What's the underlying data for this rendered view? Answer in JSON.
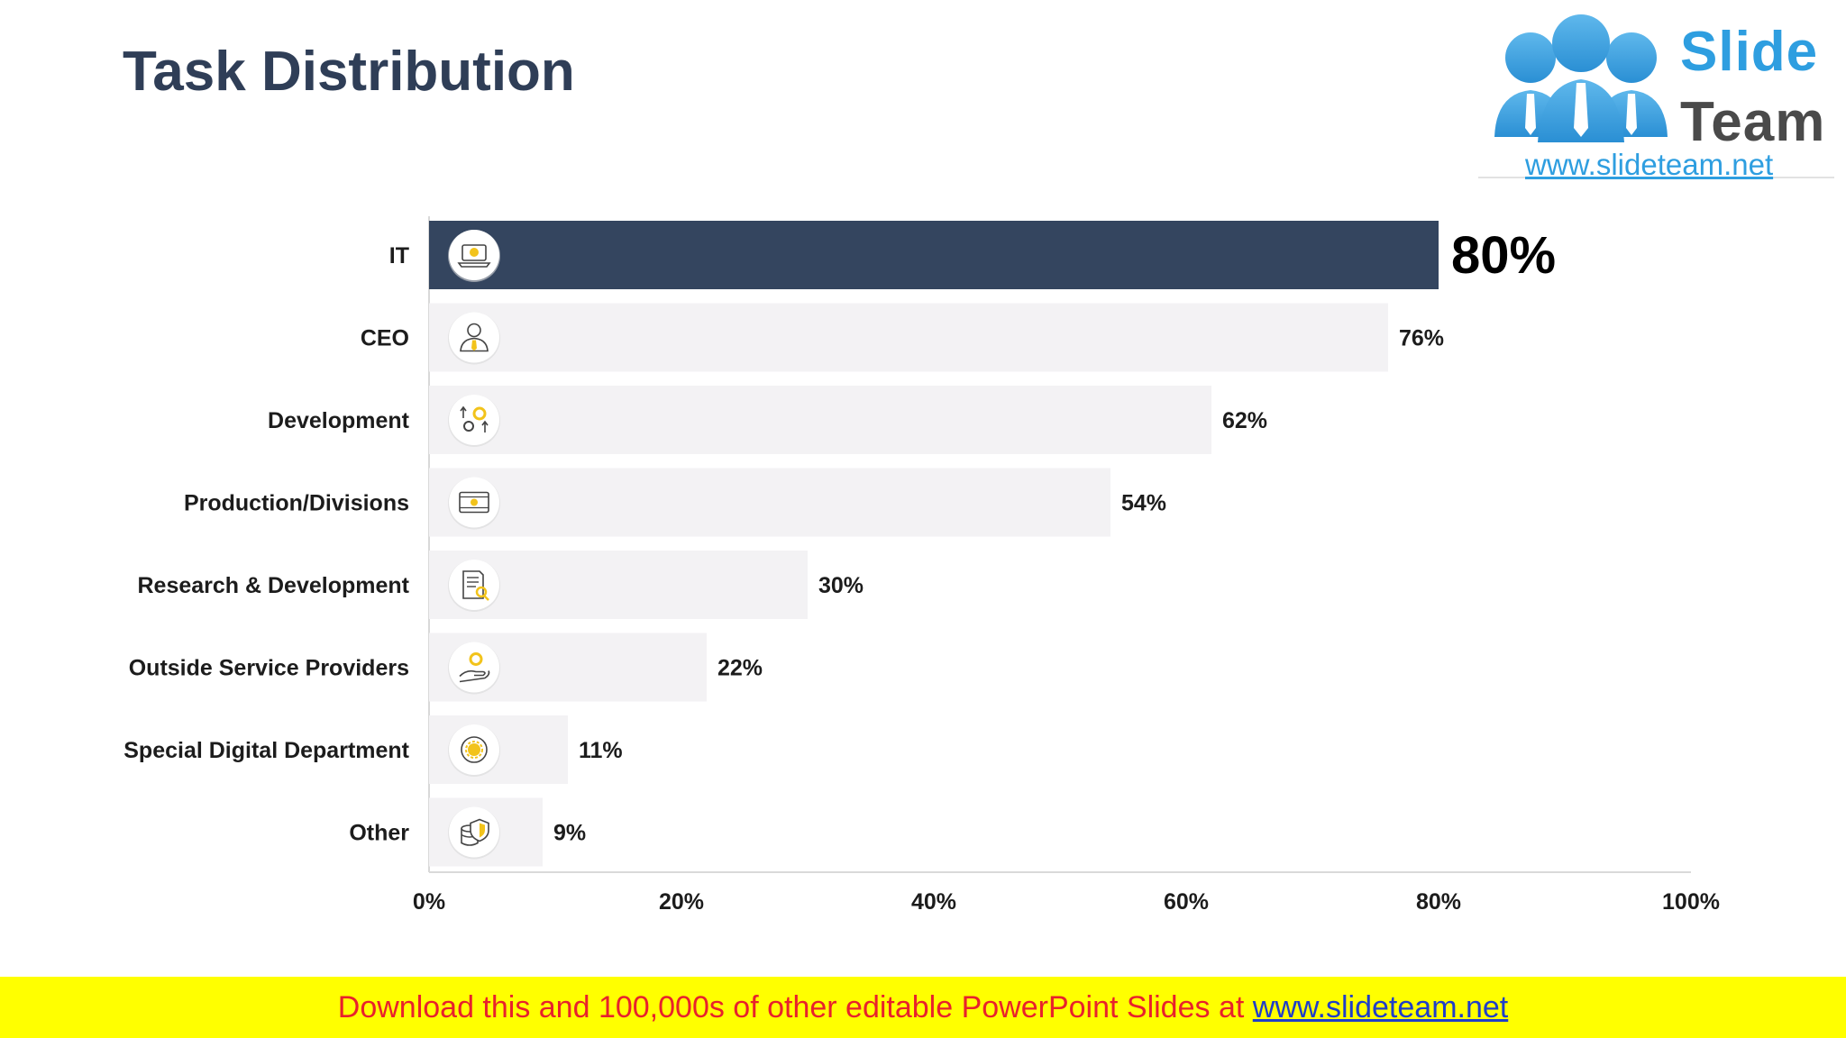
{
  "title": "Task Distribution",
  "logo": {
    "word1": "Slide",
    "word2": "Team",
    "url": "www.slideteam.net",
    "brand_blue": "#2e9ee0",
    "brand_gray": "#4a4a4a"
  },
  "chart_data": {
    "type": "bar",
    "orientation": "horizontal",
    "title": "",
    "xlabel": "",
    "ylabel": "",
    "xlim": [
      0,
      100
    ],
    "x_ticks": [
      "0%",
      "20%",
      "40%",
      "60%",
      "80%",
      "100%"
    ],
    "grid": false,
    "legend": "none",
    "categories": [
      "IT",
      "CEO",
      "Development",
      "Production/Divisions",
      "Research & Development",
      "Outside Service Providers",
      "Special Digital Department",
      "Other"
    ],
    "values": [
      80,
      76,
      62,
      54,
      30,
      22,
      11,
      9
    ],
    "value_labels": [
      "80%",
      "76%",
      "62%",
      "54%",
      "30%",
      "22%",
      "11%",
      "9%"
    ],
    "icons": [
      "laptop-icon",
      "ceo-person-icon",
      "gears-arrows-icon",
      "film-strip-icon",
      "document-search-icon",
      "hand-gear-icon",
      "digital-gear-icon",
      "coins-shield-icon"
    ],
    "highlight_index": 0,
    "highlight_color": "#34455f",
    "bar_color": "#f3f2f4",
    "accent_color": "#f2c31b"
  },
  "footer": {
    "text": "Download this and 100,000s of other editable PowerPoint Slides at ",
    "link": "www.slideteam.net"
  }
}
